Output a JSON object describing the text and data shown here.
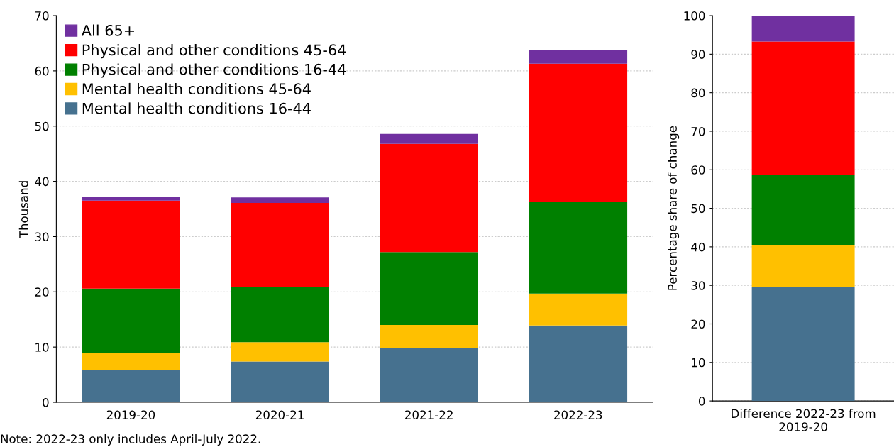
{
  "chart_data": [
    {
      "type": "bar",
      "stacked": true,
      "ylabel": "Thousand",
      "categories": [
        "2019-20",
        "2020-21",
        "2021-22",
        "2022-23"
      ],
      "ylim": [
        0,
        70
      ],
      "yticks": [
        0,
        10,
        20,
        30,
        40,
        50,
        60,
        70
      ],
      "grid": "y",
      "legend": "top left",
      "series": [
        {
          "name": "Mental health conditions 16-44",
          "color": "#46718f",
          "values": [
            5.9,
            7.4,
            9.8,
            13.9
          ]
        },
        {
          "name": "Mental health conditions 45-64",
          "color": "#ffc000",
          "values": [
            3.1,
            3.5,
            4.2,
            5.8
          ]
        },
        {
          "name": "Physical and other conditions 16-44",
          "color": "#008000",
          "values": [
            11.6,
            10.0,
            13.2,
            16.6
          ]
        },
        {
          "name": "Physical and other conditions 45-64",
          "color": "#ff0000",
          "values": [
            15.9,
            15.2,
            19.6,
            25.0
          ]
        },
        {
          "name": "All 65+",
          "color": "#7030a0",
          "values": [
            0.7,
            1.0,
            1.8,
            2.5
          ]
        }
      ],
      "annotations": [
        "Note: 2022-23 only includes April-July 2022."
      ]
    },
    {
      "type": "bar",
      "stacked": true,
      "ylabel": "Percentage share of change",
      "categories": [
        "Difference 2022-23 from 2019-20"
      ],
      "ylim": [
        0,
        100
      ],
      "yticks": [
        0,
        10,
        20,
        30,
        40,
        50,
        60,
        70,
        80,
        90,
        100
      ],
      "grid": "y",
      "series": [
        {
          "color": "#46718f",
          "values": [
            29.5
          ]
        },
        {
          "color": "#ffc000",
          "values": [
            10.9
          ]
        },
        {
          "color": "#008000",
          "values": [
            18.3
          ]
        },
        {
          "color": "#ff0000",
          "values": [
            34.6
          ]
        },
        {
          "color": "#7030a0",
          "values": [
            6.7
          ]
        }
      ]
    }
  ]
}
